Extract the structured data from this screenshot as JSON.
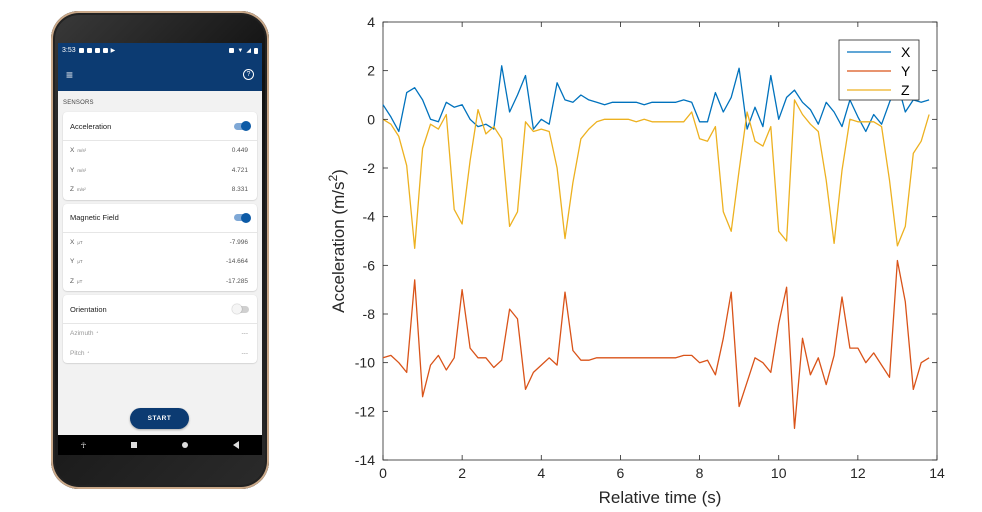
{
  "phone": {
    "status_bar": {
      "time": "3:53"
    },
    "app_bar": {
      "menu_icon": "hamburger-menu-icon",
      "help_icon": "help-circle-icon"
    },
    "section_title": "SENSORS",
    "cards": [
      {
        "title": "Acceleration",
        "enabled": true,
        "rows": [
          {
            "axis": "X",
            "unit": "m/s²",
            "value": "0.449"
          },
          {
            "axis": "Y",
            "unit": "m/s²",
            "value": "4.721"
          },
          {
            "axis": "Z",
            "unit": "m/s²",
            "value": "8.331"
          }
        ]
      },
      {
        "title": "Magnetic Field",
        "enabled": true,
        "rows": [
          {
            "axis": "X",
            "unit": "μT",
            "value": "-7.996"
          },
          {
            "axis": "Y",
            "unit": "μT",
            "value": "-14.664"
          },
          {
            "axis": "Z",
            "unit": "μT",
            "value": "-17.285"
          }
        ]
      },
      {
        "title": "Orientation",
        "enabled": false,
        "rows": [
          {
            "axis": "Azimuth",
            "unit": "°",
            "value": "---"
          },
          {
            "axis": "Pitch",
            "unit": "°",
            "value": "---"
          }
        ]
      }
    ],
    "start_button": "START",
    "colors": {
      "brand": "#0c3b72",
      "toggle_on": "#0c5aa6"
    }
  },
  "chart_data": {
    "type": "line",
    "title": "",
    "xlabel": "Relative time (s)",
    "ylabel": "Acceleration (m/s²)",
    "xlim": [
      0,
      14
    ],
    "ylim": [
      -14,
      4
    ],
    "xticks": [
      "0",
      "2",
      "4",
      "6",
      "8",
      "10",
      "12",
      "14"
    ],
    "yticks": [
      "4",
      "2",
      "0",
      "-2",
      "-4",
      "-6",
      "-8",
      "-10",
      "-12",
      "-14"
    ],
    "grid": false,
    "legend_position": "top-right",
    "series": [
      {
        "name": "X",
        "color": "#0072BD",
        "points": [
          [
            0,
            0.6
          ],
          [
            0.2,
            0.1
          ],
          [
            0.4,
            -0.5
          ],
          [
            0.6,
            1.1
          ],
          [
            0.8,
            1.3
          ],
          [
            1.0,
            0.8
          ],
          [
            1.2,
            0.0
          ],
          [
            1.4,
            -0.1
          ],
          [
            1.6,
            0.7
          ],
          [
            1.8,
            0.5
          ],
          [
            2.0,
            0.6
          ],
          [
            2.2,
            0.0
          ],
          [
            2.4,
            -0.3
          ],
          [
            2.6,
            -0.2
          ],
          [
            2.8,
            -0.4
          ],
          [
            3.0,
            2.2
          ],
          [
            3.2,
            0.3
          ],
          [
            3.4,
            1.0
          ],
          [
            3.6,
            1.8
          ],
          [
            3.8,
            -0.4
          ],
          [
            4.0,
            0.0
          ],
          [
            4.2,
            -0.2
          ],
          [
            4.4,
            1.5
          ],
          [
            4.6,
            0.8
          ],
          [
            4.8,
            0.7
          ],
          [
            5.0,
            1.0
          ],
          [
            5.2,
            0.8
          ],
          [
            5.4,
            0.7
          ],
          [
            5.6,
            0.6
          ],
          [
            5.8,
            0.7
          ],
          [
            6.0,
            0.7
          ],
          [
            6.2,
            0.7
          ],
          [
            6.4,
            0.7
          ],
          [
            6.6,
            0.6
          ],
          [
            6.8,
            0.7
          ],
          [
            7.0,
            0.7
          ],
          [
            7.2,
            0.7
          ],
          [
            7.4,
            0.7
          ],
          [
            7.6,
            0.8
          ],
          [
            7.8,
            0.7
          ],
          [
            8.0,
            -0.1
          ],
          [
            8.2,
            -0.1
          ],
          [
            8.4,
            1.1
          ],
          [
            8.6,
            0.3
          ],
          [
            8.8,
            0.9
          ],
          [
            9.0,
            2.1
          ],
          [
            9.2,
            -0.4
          ],
          [
            9.4,
            0.5
          ],
          [
            9.6,
            -0.3
          ],
          [
            9.8,
            1.8
          ],
          [
            10.0,
            0.0
          ],
          [
            10.2,
            0.9
          ],
          [
            10.4,
            1.2
          ],
          [
            10.6,
            0.7
          ],
          [
            10.8,
            0.4
          ],
          [
            11.0,
            -0.2
          ],
          [
            11.2,
            0.7
          ],
          [
            11.4,
            0.3
          ],
          [
            11.6,
            -0.3
          ],
          [
            11.8,
            0.8
          ],
          [
            12.0,
            0.1
          ],
          [
            12.2,
            -0.5
          ],
          [
            12.4,
            0.2
          ],
          [
            12.6,
            -0.2
          ],
          [
            12.8,
            0.7
          ],
          [
            13.0,
            1.5
          ],
          [
            13.2,
            0.3
          ],
          [
            13.4,
            0.8
          ],
          [
            13.6,
            0.7
          ],
          [
            13.8,
            0.8
          ]
        ]
      },
      {
        "name": "Y",
        "color": "#D95319",
        "points": [
          [
            0,
            -9.8
          ],
          [
            0.2,
            -9.7
          ],
          [
            0.4,
            -10.0
          ],
          [
            0.6,
            -10.4
          ],
          [
            0.8,
            -6.6
          ],
          [
            1.0,
            -11.4
          ],
          [
            1.2,
            -10.1
          ],
          [
            1.4,
            -9.7
          ],
          [
            1.6,
            -10.3
          ],
          [
            1.8,
            -9.8
          ],
          [
            2.0,
            -7.0
          ],
          [
            2.2,
            -9.4
          ],
          [
            2.4,
            -9.8
          ],
          [
            2.6,
            -9.8
          ],
          [
            2.8,
            -10.2
          ],
          [
            3.0,
            -9.9
          ],
          [
            3.2,
            -7.8
          ],
          [
            3.4,
            -8.2
          ],
          [
            3.6,
            -11.1
          ],
          [
            3.8,
            -10.4
          ],
          [
            4.0,
            -10.1
          ],
          [
            4.2,
            -9.8
          ],
          [
            4.4,
            -10.1
          ],
          [
            4.6,
            -7.1
          ],
          [
            4.8,
            -9.5
          ],
          [
            5.0,
            -9.9
          ],
          [
            5.2,
            -9.9
          ],
          [
            5.4,
            -9.8
          ],
          [
            5.6,
            -9.8
          ],
          [
            5.8,
            -9.8
          ],
          [
            6.0,
            -9.8
          ],
          [
            6.2,
            -9.8
          ],
          [
            6.4,
            -9.8
          ],
          [
            6.6,
            -9.8
          ],
          [
            6.8,
            -9.8
          ],
          [
            7.0,
            -9.8
          ],
          [
            7.2,
            -9.8
          ],
          [
            7.4,
            -9.8
          ],
          [
            7.6,
            -9.7
          ],
          [
            7.8,
            -9.7
          ],
          [
            8.0,
            -10.0
          ],
          [
            8.2,
            -9.9
          ],
          [
            8.4,
            -10.5
          ],
          [
            8.6,
            -9.0
          ],
          [
            8.8,
            -7.1
          ],
          [
            9.0,
            -11.8
          ],
          [
            9.2,
            -10.8
          ],
          [
            9.4,
            -9.8
          ],
          [
            9.6,
            -10.0
          ],
          [
            9.8,
            -10.4
          ],
          [
            10.0,
            -8.4
          ],
          [
            10.2,
            -6.9
          ],
          [
            10.4,
            -12.7
          ],
          [
            10.6,
            -9.0
          ],
          [
            10.8,
            -10.5
          ],
          [
            11.0,
            -9.8
          ],
          [
            11.2,
            -10.9
          ],
          [
            11.4,
            -9.7
          ],
          [
            11.6,
            -7.3
          ],
          [
            11.8,
            -9.4
          ],
          [
            12.0,
            -9.4
          ],
          [
            12.2,
            -10.0
          ],
          [
            12.4,
            -9.6
          ],
          [
            12.6,
            -10.1
          ],
          [
            12.8,
            -10.6
          ],
          [
            13.0,
            -5.8
          ],
          [
            13.2,
            -7.5
          ],
          [
            13.4,
            -11.1
          ],
          [
            13.6,
            -10.0
          ],
          [
            13.8,
            -9.8
          ]
        ]
      },
      {
        "name": "Z",
        "color": "#EDB120",
        "points": [
          [
            0,
            0.0
          ],
          [
            0.2,
            -0.2
          ],
          [
            0.4,
            -0.7
          ],
          [
            0.6,
            -1.9
          ],
          [
            0.8,
            -5.3
          ],
          [
            1.0,
            -1.2
          ],
          [
            1.2,
            -0.2
          ],
          [
            1.4,
            -0.4
          ],
          [
            1.6,
            0.2
          ],
          [
            1.8,
            -3.7
          ],
          [
            2.0,
            -4.3
          ],
          [
            2.2,
            -1.7
          ],
          [
            2.4,
            0.4
          ],
          [
            2.6,
            -0.6
          ],
          [
            2.8,
            -0.3
          ],
          [
            3.0,
            -0.8
          ],
          [
            3.2,
            -4.4
          ],
          [
            3.4,
            -3.8
          ],
          [
            3.6,
            -0.1
          ],
          [
            3.8,
            -0.5
          ],
          [
            4.0,
            -0.4
          ],
          [
            4.2,
            -0.5
          ],
          [
            4.4,
            -2.0
          ],
          [
            4.6,
            -4.9
          ],
          [
            4.8,
            -2.6
          ],
          [
            5.0,
            -0.8
          ],
          [
            5.2,
            -0.4
          ],
          [
            5.4,
            -0.1
          ],
          [
            5.6,
            0.0
          ],
          [
            5.8,
            0.0
          ],
          [
            6.0,
            0.0
          ],
          [
            6.2,
            0.0
          ],
          [
            6.4,
            -0.1
          ],
          [
            6.6,
            0.0
          ],
          [
            6.8,
            -0.1
          ],
          [
            7.0,
            -0.1
          ],
          [
            7.2,
            -0.1
          ],
          [
            7.4,
            -0.1
          ],
          [
            7.6,
            -0.1
          ],
          [
            7.8,
            0.3
          ],
          [
            8.0,
            -0.8
          ],
          [
            8.2,
            -0.9
          ],
          [
            8.4,
            -0.3
          ],
          [
            8.6,
            -3.8
          ],
          [
            8.8,
            -4.6
          ],
          [
            9.0,
            -2.1
          ],
          [
            9.2,
            0.3
          ],
          [
            9.4,
            -0.9
          ],
          [
            9.6,
            -1.1
          ],
          [
            9.8,
            -0.3
          ],
          [
            10.0,
            -4.6
          ],
          [
            10.2,
            -5.0
          ],
          [
            10.4,
            0.8
          ],
          [
            10.6,
            0.2
          ],
          [
            10.8,
            -0.2
          ],
          [
            11.0,
            -0.5
          ],
          [
            11.2,
            -2.5
          ],
          [
            11.4,
            -5.1
          ],
          [
            11.6,
            -2.1
          ],
          [
            11.8,
            0.0
          ],
          [
            12.0,
            -0.1
          ],
          [
            12.2,
            -0.1
          ],
          [
            12.4,
            -0.1
          ],
          [
            12.6,
            -0.3
          ],
          [
            12.8,
            -2.5
          ],
          [
            13.0,
            -5.2
          ],
          [
            13.2,
            -4.4
          ],
          [
            13.4,
            -1.4
          ],
          [
            13.6,
            -0.9
          ],
          [
            13.8,
            0.2
          ]
        ]
      }
    ]
  }
}
